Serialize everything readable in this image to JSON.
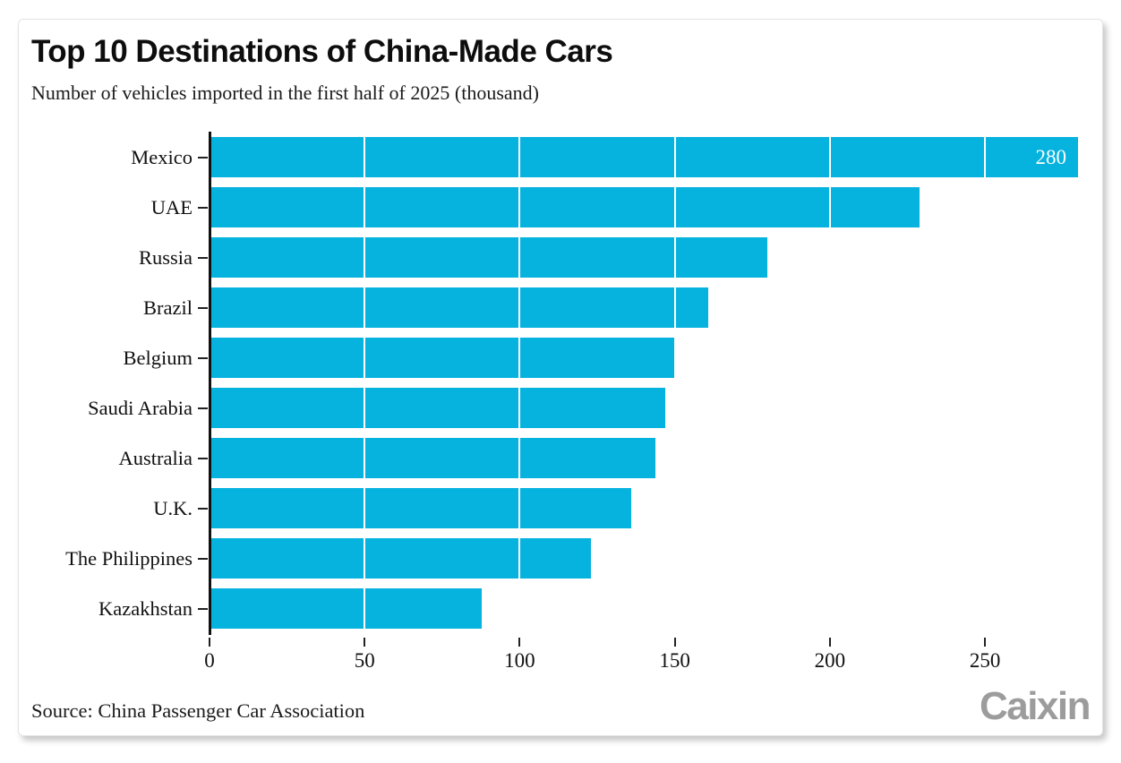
{
  "header": {
    "title": "Top 10 Destinations of China-Made Cars",
    "subtitle": "Number of vehicles imported in the first half of 2025 (thousand)"
  },
  "footer": {
    "source": "Source: China Passenger Car Association",
    "logo": "Caixin"
  },
  "chart_data": {
    "type": "bar",
    "orientation": "horizontal",
    "title": "Top 10 Destinations of China-Made Cars",
    "subtitle": "Number of vehicles imported in the first half of 2025 (thousand)",
    "categories": [
      "Mexico",
      "UAE",
      "Russia",
      "Brazil",
      "Belgium",
      "Saudi Arabia",
      "Australia",
      "U.K.",
      "The Philippines",
      "Kazakhstan"
    ],
    "values": [
      280,
      229,
      180,
      161,
      150,
      147,
      144,
      136,
      123,
      88
    ],
    "x_ticks": [
      0,
      50,
      100,
      150,
      200,
      250
    ],
    "xlim": [
      0,
      280
    ],
    "xlabel": "",
    "ylabel": "",
    "bar_color": "#06b2de",
    "grid": "white vertical gridlines over bars",
    "value_label": {
      "category": "Mexico",
      "text": "280",
      "color": "#ffffff"
    }
  }
}
